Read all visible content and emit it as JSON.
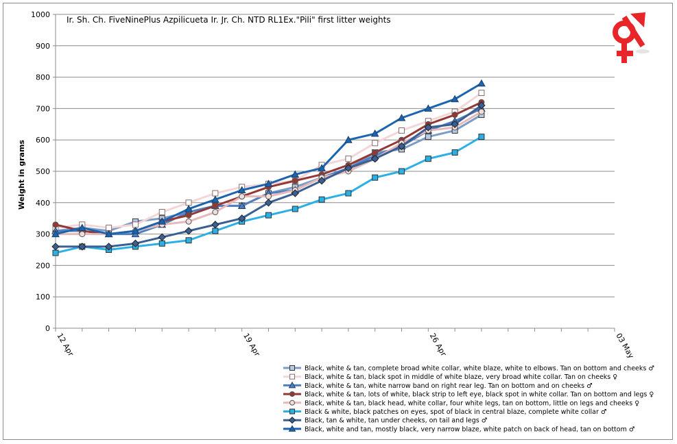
{
  "chart_data": {
    "type": "line",
    "title": "Ir. Sh. Ch. FiveNinePlus Azpilicueta Ir. Jr. Ch. NTD RL1Ex.\"Pili\" first litter weights",
    "xlabel": "",
    "ylabel": "Weight in grams",
    "ylim": [
      0,
      1000
    ],
    "yticks": [
      "0",
      "100",
      "200",
      "300",
      "400",
      "500",
      "600",
      "700",
      "800",
      "900",
      "1000"
    ],
    "xlim": [
      "2012-04-12",
      "2012-05-03"
    ],
    "xticks": [
      {
        "date": "2012-04-12",
        "label": "12 Apr"
      },
      {
        "date": "2012-04-19",
        "label": "19 Apr"
      },
      {
        "date": "2012-04-26",
        "label": "26 Apr"
      },
      {
        "date": "2012-05-03",
        "label": "03 May"
      }
    ],
    "grid": "horizontal",
    "legend_position": "bottom-right",
    "x": [
      "2012-04-12",
      "2012-04-13",
      "2012-04-14",
      "2012-04-15",
      "2012-04-16",
      "2012-04-17",
      "2012-04-18",
      "2012-04-19",
      "2012-04-20",
      "2012-04-21",
      "2012-04-22",
      "2012-04-23",
      "2012-04-24",
      "2012-04-25",
      "2012-04-26",
      "2012-04-27",
      "2012-04-28"
    ],
    "series": [
      {
        "name": "Black, white & tan, complete broad white collar, white blaze, white to elbows. Tan on bottom and cheeks ♂",
        "color": "#7c9cc8",
        "fill": "#b9c9e0",
        "marker": "square",
        "values": [
          310,
          320,
          310,
          340,
          350,
          370,
          390,
          390,
          430,
          450,
          480,
          510,
          560,
          570,
          610,
          630,
          680
        ]
      },
      {
        "name": "Black, white & tan, black spot in middle of white blaze, very broad white collar. Tan on cheeks ♀",
        "color": "#f2d6d8",
        "fill": "#ffffff",
        "marker": "square",
        "values": [
          320,
          330,
          320,
          330,
          370,
          400,
          430,
          450,
          460,
          470,
          520,
          540,
          590,
          630,
          660,
          690,
          750
        ]
      },
      {
        "name": "Black, white & tan, white narrow band on right rear leg. Tan on bottom and on cheeks ♂",
        "color": "#4f7fc0",
        "fill": "#4f7fc0",
        "marker": "triangle",
        "values": [
          310,
          310,
          300,
          300,
          330,
          370,
          390,
          390,
          430,
          440,
          480,
          510,
          550,
          580,
          630,
          660,
          700
        ]
      },
      {
        "name": "Black, white & tan, lots of white, black strip to left eye, black spot in white collar. Tan on bottom and legs ♀",
        "color": "#953735",
        "fill": "#953735",
        "marker": "circle",
        "values": [
          330,
          310,
          300,
          310,
          340,
          360,
          390,
          420,
          450,
          470,
          490,
          520,
          560,
          600,
          650,
          680,
          720
        ]
      },
      {
        "name": "Black, white & tan, black head, white collar, four white legs, tan on bottom, little on legs and cheeks ♀",
        "color": "#e6b9b8",
        "fill": "#f2dcdb",
        "marker": "circle",
        "values": [
          300,
          300,
          300,
          310,
          330,
          340,
          370,
          420,
          420,
          440,
          480,
          500,
          540,
          590,
          630,
          640,
          690
        ]
      },
      {
        "name": "Black & white, black patches on eyes, spot of black in central blaze, complete white collar ♂",
        "color": "#2ab0e4",
        "fill": "#2ab0e4",
        "marker": "square",
        "values": [
          240,
          260,
          250,
          260,
          270,
          280,
          310,
          340,
          360,
          380,
          410,
          430,
          480,
          500,
          540,
          560,
          610
        ]
      },
      {
        "name": "Black, tan & white, tan under cheeks, on tail and legs ♂",
        "color": "#3b5f93",
        "fill": "#3b5f93",
        "marker": "diamond",
        "values": [
          260,
          260,
          260,
          270,
          290,
          310,
          330,
          350,
          400,
          430,
          470,
          510,
          540,
          580,
          640,
          650,
          710
        ]
      },
      {
        "name": "Black, white and tan, mostly black, very narrow blaze, white patch on back of head, tan on bottom ♂",
        "color": "#1a64b0",
        "fill": "#1a64b0",
        "marker": "triangle",
        "values": [
          300,
          320,
          300,
          310,
          340,
          380,
          410,
          440,
          460,
          490,
          510,
          600,
          620,
          670,
          700,
          730,
          780
        ]
      }
    ]
  },
  "symbol": {
    "glyph": "♀♂",
    "color": "#e8262a"
  }
}
